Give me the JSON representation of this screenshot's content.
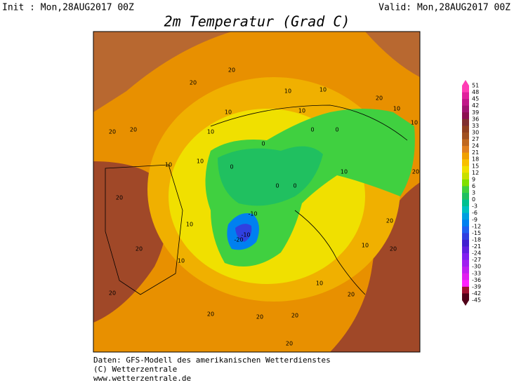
{
  "header": {
    "init": "Init : Mon,28AUG2017 00Z",
    "valid": "Valid: Mon,28AUG2017 00Z",
    "title": "2m Temperatur (Grad C)"
  },
  "map": {
    "labels": [
      "20",
      "20",
      "20",
      "20",
      "20",
      "20",
      "20",
      "20",
      "20",
      "20",
      "20",
      "20",
      "20",
      "10",
      "10",
      "10",
      "10",
      "10",
      "10",
      "10",
      "10",
      "10",
      "10",
      "10",
      "10",
      "10",
      "0",
      "0",
      "0",
      "0",
      "0",
      "0",
      "-10",
      "-10",
      "-20",
      "20",
      "10",
      "20",
      "20"
    ]
  },
  "colorbar": {
    "ticks": [
      "51",
      "48",
      "45",
      "42",
      "39",
      "36",
      "33",
      "30",
      "27",
      "24",
      "21",
      "18",
      "15",
      "12",
      "9",
      "6",
      "3",
      "0",
      "-3",
      "-6",
      "-9",
      "-12",
      "-15",
      "-18",
      "-21",
      "-24",
      "-27",
      "-30",
      "-33",
      "-36",
      "-39",
      "-42",
      "-45"
    ],
    "colors": [
      "#ff3cb4",
      "#e0209c",
      "#c01888",
      "#a01470",
      "#8c1050",
      "#803030",
      "#904020",
      "#a05020",
      "#c06820",
      "#e08020",
      "#f0a000",
      "#f8c000",
      "#f0e000",
      "#c8e000",
      "#80e000",
      "#40d040",
      "#20c060",
      "#00c090",
      "#00c0c0",
      "#00a0e0",
      "#0080f0",
      "#2060f0",
      "#3040e0",
      "#4020d0",
      "#6020e0",
      "#8020f0",
      "#a020f0",
      "#c020f0",
      "#e020f0",
      "#ff20ff",
      "#a01030",
      "#500018"
    ]
  },
  "footer": {
    "line1": "Daten: GFS-Modell des amerikanischen Wetterdienstes",
    "line2": "(C) Wetterzentrale",
    "line3": "www.wetterzentrale.de"
  }
}
